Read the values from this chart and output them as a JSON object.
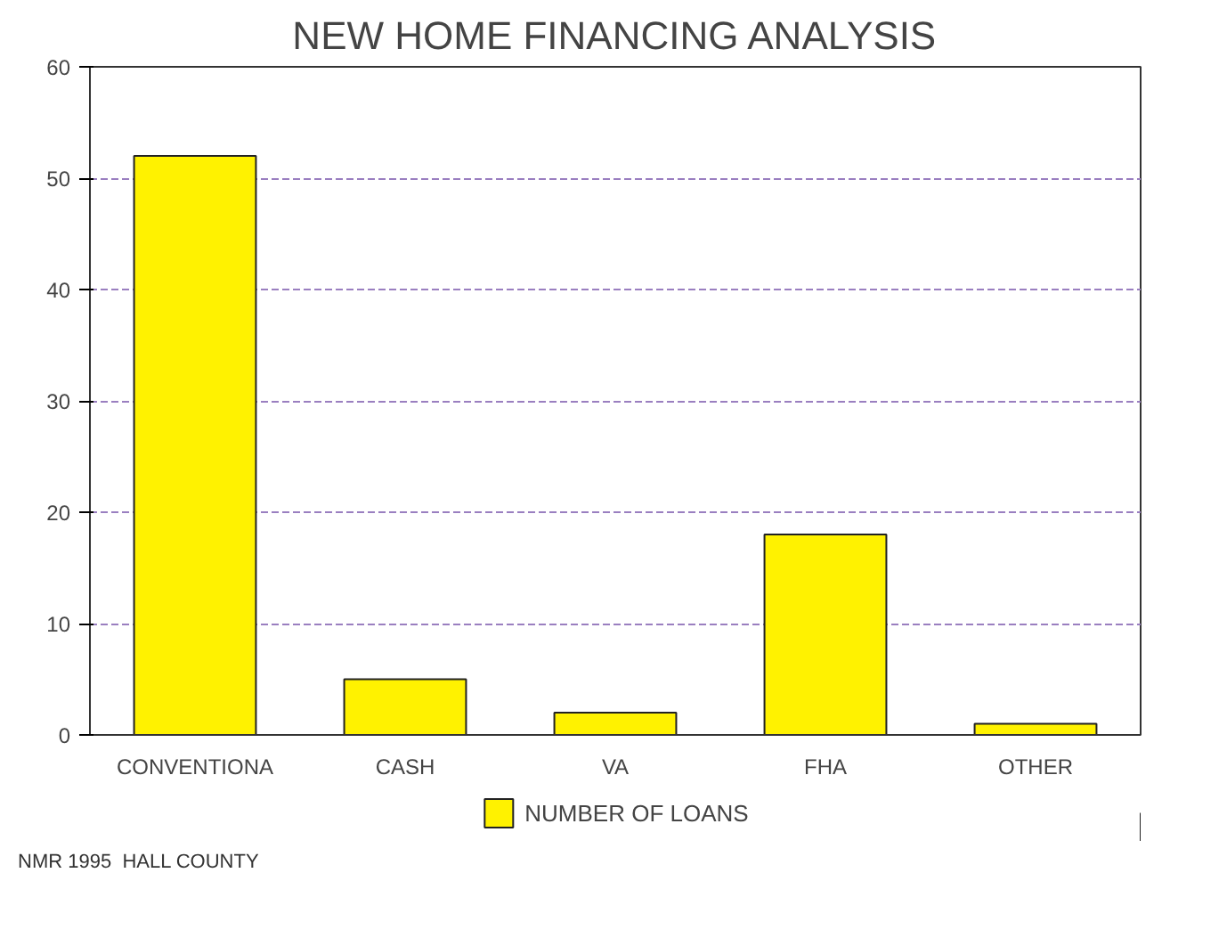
{
  "chart_data": {
    "type": "bar",
    "title": "NEW HOME FINANCING ANALYSIS",
    "categories": [
      "CONVENTIONA",
      "CASH",
      "VA",
      "FHA",
      "OTHER"
    ],
    "series": [
      {
        "name": "NUMBER OF LOANS",
        "color": "#fff200",
        "values": [
          52,
          5,
          2,
          18,
          1
        ]
      }
    ],
    "ylim": [
      0,
      60
    ],
    "yticks": [
      0,
      10,
      20,
      30,
      40,
      50,
      60
    ],
    "grid": "y",
    "legend": "bottom",
    "annotations": [
      "NMR 1995  HALL COUNTY"
    ]
  }
}
